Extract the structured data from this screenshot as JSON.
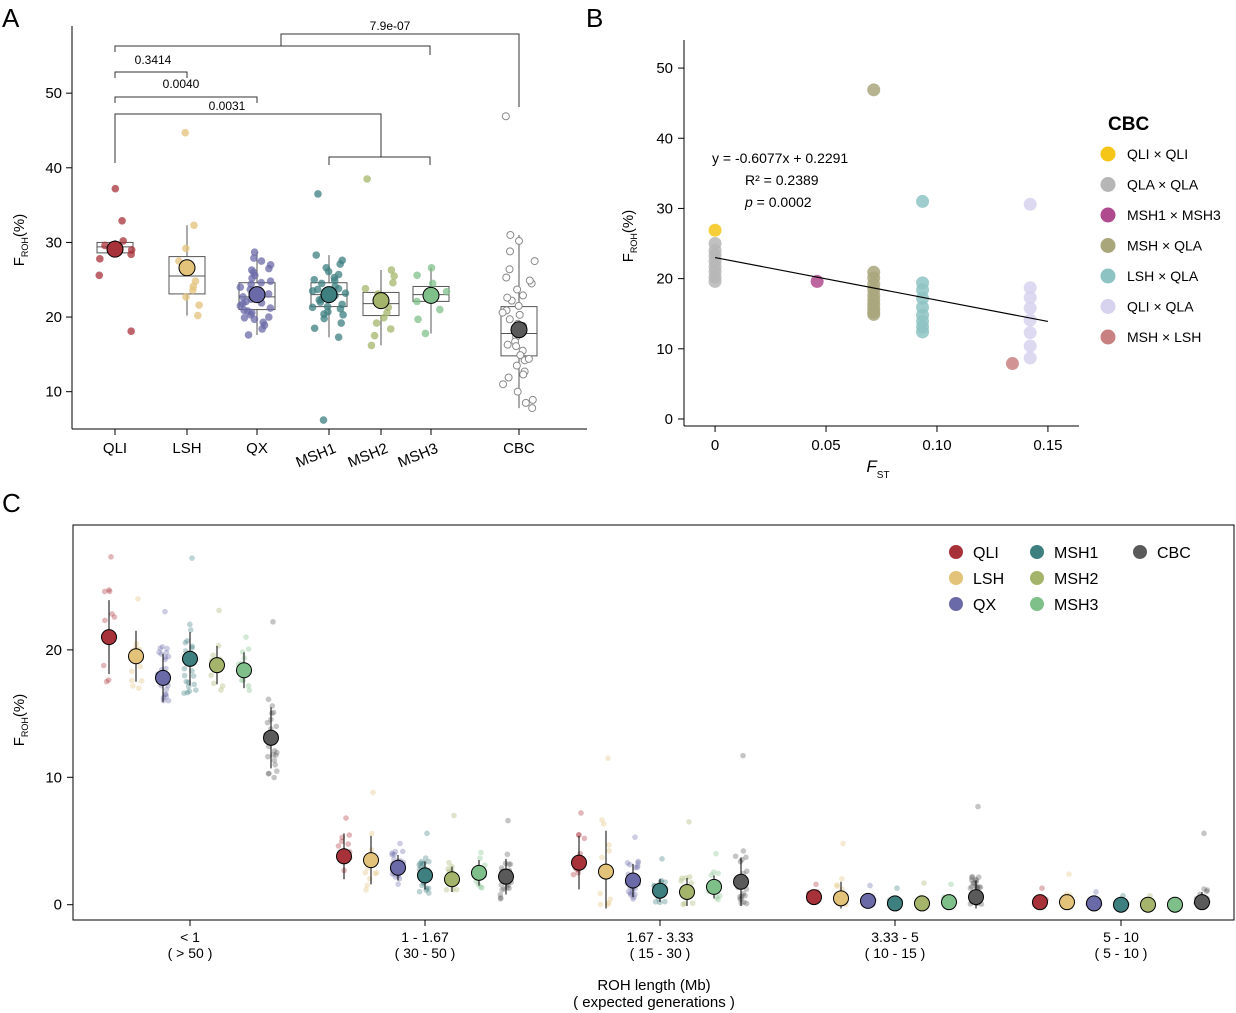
{
  "panels": {
    "a": {
      "letter": "A"
    },
    "b": {
      "letter": "B"
    },
    "c": {
      "letter": "C"
    }
  },
  "colors": {
    "QLI": "#a8323a",
    "LSH": "#e3c27a",
    "QX": "#6b6aa8",
    "MSH1": "#3e7f80",
    "MSH2": "#a4b56b",
    "MSH3": "#7fc08a",
    "CBC": "#5a5a5a"
  },
  "chart_data": [
    {
      "panel": "A",
      "type": "scatter",
      "subtype": "box-jitter",
      "ylabel_main": "F",
      "ylabel_sub": "ROH",
      "ylabel_unit": "(%)",
      "ylim": [
        5,
        59
      ],
      "yticks": [
        10,
        20,
        30,
        40,
        50
      ],
      "categories": [
        "QLI",
        "LSH",
        "QX",
        "MSH1",
        "MSH2",
        "MSH3",
        "CBC"
      ],
      "means": [
        29.1,
        26.6,
        23.0,
        23.0,
        22.2,
        22.9,
        18.3
      ],
      "boxes": [
        {
          "q1": 28.6,
          "median": 29.4,
          "q3": 30.0,
          "wlo": 28.0,
          "whi": 30.3
        },
        {
          "q1": 23.1,
          "median": 25.5,
          "q3": 28.1,
          "wlo": 20.2,
          "whi": 32.3
        },
        {
          "q1": 21.0,
          "median": 22.7,
          "q3": 24.6,
          "wlo": 17.6,
          "whi": 28.7
        },
        {
          "q1": 21.4,
          "median": 23.0,
          "q3": 24.6,
          "wlo": 17.3,
          "whi": 28.3
        },
        {
          "q1": 20.2,
          "median": 21.8,
          "q3": 23.3,
          "wlo": 16.2,
          "whi": 26.3
        },
        {
          "q1": 22.1,
          "median": 23.0,
          "q3": 24.1,
          "wlo": 17.8,
          "whi": 26.6
        },
        {
          "q1": 14.8,
          "median": 17.8,
          "q3": 21.4,
          "wlo": 7.8,
          "whi": 31.0
        }
      ],
      "points": [
        [
          37.2,
          32.9,
          30.2,
          29.6,
          29.0,
          28.4,
          27.8,
          25.6,
          18.1
        ],
        [
          44.7,
          32.3,
          29.2,
          27.5,
          26.0,
          24.8,
          23.6,
          22.7,
          21.6,
          20.2,
          24.1
        ],
        [
          28.7,
          27.9,
          27.5,
          27.0,
          26.5,
          26.0,
          25.6,
          25.2,
          24.8,
          24.4,
          24.0,
          23.7,
          23.3,
          23.0,
          22.7,
          22.4,
          22.1,
          21.8,
          21.5,
          21.2,
          20.9,
          20.6,
          20.3,
          20.0,
          19.7,
          19.3,
          18.9,
          18.4,
          17.6,
          26.3,
          24.6,
          23.1,
          21.9,
          20.8,
          19.9
        ],
        [
          36.5,
          28.3,
          27.6,
          27.1,
          26.6,
          26.1,
          25.7,
          25.3,
          24.9,
          24.5,
          24.1,
          23.8,
          23.5,
          23.2,
          22.9,
          22.6,
          22.3,
          22.0,
          21.7,
          21.4,
          21.1,
          20.7,
          20.3,
          19.8,
          19.2,
          18.5,
          17.3,
          6.2,
          25.0,
          23.7,
          22.4,
          21.3,
          20.4
        ],
        [
          38.5,
          26.3,
          25.5,
          24.6,
          23.8,
          23.1,
          22.5,
          21.9,
          21.3,
          20.6,
          19.9,
          19.2,
          18.4,
          17.5,
          16.2
        ],
        [
          26.6,
          25.6,
          24.5,
          23.4,
          22.8,
          22.1,
          21.0,
          19.7,
          17.8
        ],
        [
          46.9,
          31.0,
          30.2,
          28.8,
          27.5,
          26.4,
          25.3,
          24.5,
          23.7,
          22.9,
          22.2,
          21.5,
          20.9,
          20.3,
          19.7,
          19.1,
          18.5,
          17.9,
          17.3,
          16.7,
          16.1,
          15.5,
          14.9,
          14.2,
          13.5,
          12.7,
          11.9,
          11.0,
          10.0,
          8.9,
          8.5,
          7.8,
          18.8,
          16.3,
          14.4,
          12.3,
          20.6,
          22.6,
          24.9
        ]
      ],
      "comparisons": [
        {
          "label": "0.3414"
        },
        {
          "label": "0.0040"
        },
        {
          "label": "0.0031"
        },
        {
          "label": "7.9e-07"
        }
      ]
    },
    {
      "panel": "B",
      "type": "scatter",
      "xlabel_main": "F",
      "xlabel_sub": "ST",
      "ylabel_main": "F",
      "ylabel_sub": "ROH",
      "ylabel_unit": "(%)",
      "xlim": [
        -0.014,
        0.164
      ],
      "ylim": [
        -1,
        54
      ],
      "xticks": [
        "0",
        "0.05",
        "0.10",
        "0.15"
      ],
      "xtick_values": [
        0,
        0.05,
        0.1,
        0.15
      ],
      "yticks": [
        0,
        10,
        20,
        30,
        40,
        50
      ],
      "legend_title": "CBC",
      "equation": "y = -0.6077x + 0.2291",
      "r2": "R² = 0.2389",
      "p_value_label": "p",
      "p_value_rest": " = 0.0002",
      "trend": {
        "x": [
          0,
          0.15
        ],
        "y": [
          23.0,
          13.9
        ]
      },
      "series": [
        {
          "name": "QLI × QLI",
          "color": "#f5c518",
          "x": [
            0
          ],
          "y": [
            26.9
          ]
        },
        {
          "name": "QLA × QLA",
          "color": "#b6b6b6",
          "x": [
            0,
            0,
            0,
            0,
            0,
            0,
            0,
            0
          ],
          "y": [
            25.0,
            24.0,
            23.3,
            22.5,
            21.7,
            21.0,
            20.2,
            19.6
          ]
        },
        {
          "name": "MSH1 × MSH3",
          "color": "#b04a8e",
          "x": [
            0.046
          ],
          "y": [
            19.6
          ]
        },
        {
          "name": "MSH × QLA",
          "color": "#a9a67c",
          "x": [
            0.0715,
            0.0715,
            0.0715,
            0.0715,
            0.0715,
            0.0715,
            0.0715,
            0.0715,
            0.0715,
            0.0715,
            0.0715
          ],
          "y": [
            46.9,
            20.9,
            20.1,
            19.2,
            18.4,
            17.6,
            16.9,
            16.3,
            15.7,
            15.2,
            14.9
          ]
        },
        {
          "name": "LSH × QLA",
          "color": "#8ec3c3",
          "x": [
            0.0935,
            0.0935,
            0.0935,
            0.0935,
            0.0935,
            0.0935,
            0.0935,
            0.0935,
            0.0935
          ],
          "y": [
            31.0,
            19.4,
            18.4,
            17.2,
            15.9,
            14.8,
            13.9,
            13.1,
            12.4
          ]
        },
        {
          "name": "QLI × QLA",
          "color": "#d7d2ee",
          "x": [
            0.142,
            0.142,
            0.142,
            0.142,
            0.142,
            0.142,
            0.142,
            0.142
          ],
          "y": [
            30.6,
            18.7,
            17.3,
            15.8,
            14.1,
            12.3,
            10.4,
            8.7
          ]
        },
        {
          "name": "MSH × LSH",
          "color": "#c98080",
          "x": [
            0.134
          ],
          "y": [
            7.9
          ]
        }
      ]
    },
    {
      "panel": "C",
      "type": "scatter",
      "subtype": "mean-sd-jitter",
      "ylabel_main": "F",
      "ylabel_sub": "ROH",
      "ylabel_unit": "(%)",
      "xlabel_line1": "ROH length (Mb)",
      "xlabel_line2": "( expected generations )",
      "ylim": [
        -1.2,
        29.8
      ],
      "yticks": [
        0,
        10,
        20
      ],
      "groups": [
        {
          "label1": "< 1",
          "label2": "( > 50 )"
        },
        {
          "label1": "1 - 1.67",
          "label2": "( 30 - 50 )"
        },
        {
          "label1": "1.67 - 3.33",
          "label2": "( 15 - 30 )"
        },
        {
          "label1": "3.33 - 5",
          "label2": "( 10 - 15 )"
        },
        {
          "label1": "5 - 10",
          "label2": "( 5 - 10 )"
        }
      ],
      "legend": [
        "QLI",
        "LSH",
        "QX",
        "MSH1",
        "MSH2",
        "MSH3",
        "CBC"
      ],
      "series": [
        {
          "name": "QLI",
          "mean": [
            21.0,
            3.8,
            3.3,
            0.6,
            0.2
          ],
          "sd": [
            2.9,
            1.8,
            2.1,
            0.4,
            0.2
          ],
          "max": [
            27.3,
            6.8,
            7.2,
            1.6,
            1.3
          ]
        },
        {
          "name": "LSH",
          "mean": [
            19.5,
            3.5,
            2.6,
            0.5,
            0.2
          ],
          "sd": [
            2.0,
            1.9,
            3.2,
            1.3,
            0.5
          ],
          "max": [
            24.0,
            8.8,
            11.5,
            4.8,
            2.4
          ]
        },
        {
          "name": "QX",
          "mean": [
            17.8,
            2.9,
            1.9,
            0.3,
            0.1
          ],
          "sd": [
            1.9,
            1.0,
            1.3,
            0.3,
            0.2
          ],
          "max": [
            23.0,
            4.8,
            5.3,
            1.5,
            1.0
          ]
        },
        {
          "name": "MSH1",
          "mean": [
            19.3,
            2.3,
            1.1,
            0.1,
            0.0
          ],
          "sd": [
            2.1,
            1.1,
            0.9,
            0.2,
            0.1
          ],
          "max": [
            27.2,
            5.6,
            3.6,
            1.3,
            0.7
          ]
        },
        {
          "name": "MSH2",
          "mean": [
            18.8,
            2.0,
            1.0,
            0.1,
            0.0
          ],
          "sd": [
            1.5,
            1.0,
            1.1,
            0.4,
            0.2
          ],
          "max": [
            23.1,
            7.0,
            6.5,
            1.7,
            0.7
          ]
        },
        {
          "name": "MSH3",
          "mean": [
            18.4,
            2.5,
            1.4,
            0.2,
            0.0
          ],
          "sd": [
            1.4,
            1.0,
            0.9,
            0.3,
            0.1
          ],
          "max": [
            21.0,
            4.1,
            4.0,
            1.6,
            0.4
          ]
        },
        {
          "name": "CBC",
          "mean": [
            13.1,
            2.2,
            1.8,
            0.6,
            0.2
          ],
          "sd": [
            2.4,
            1.4,
            1.9,
            1.3,
            0.8
          ],
          "max": [
            22.2,
            6.6,
            11.7,
            7.7,
            5.6
          ]
        }
      ]
    }
  ]
}
